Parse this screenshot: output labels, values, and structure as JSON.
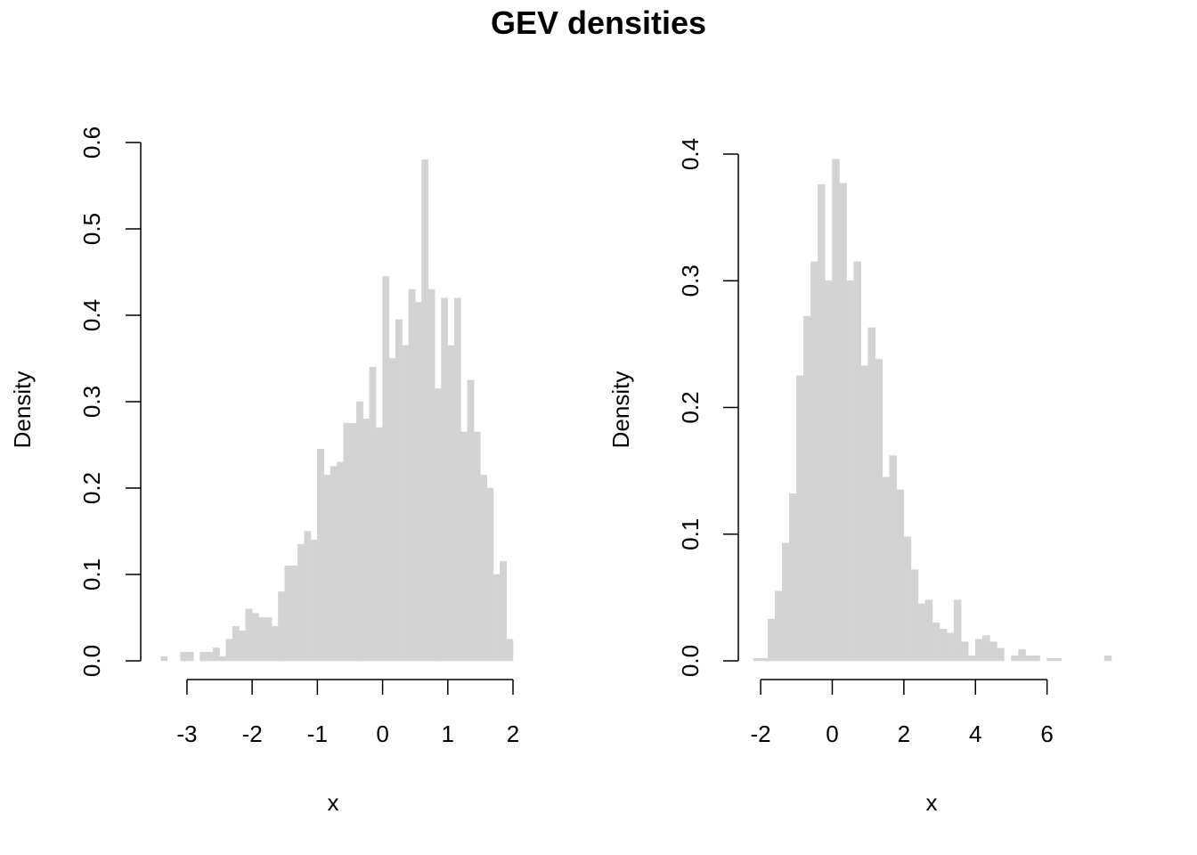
{
  "title": "GEV densities",
  "bar_color": "#d3d3d3",
  "chart_data": [
    {
      "type": "bar",
      "histogram": true,
      "xlabel": "x",
      "ylabel": "Density",
      "xlim": [
        -3.6,
        2.0
      ],
      "ylim": [
        0,
        0.6
      ],
      "xticks": [
        -3,
        -2,
        -1,
        0,
        1,
        2
      ],
      "xtick_labels": [
        "-3",
        "-2",
        "-1",
        "0",
        "1",
        "2"
      ],
      "yticks": [
        0,
        0.1,
        0.2,
        0.3,
        0.4,
        0.5,
        0.6
      ],
      "ytick_labels": [
        "0.0",
        "0.1",
        "0.2",
        "0.3",
        "0.4",
        "0.5",
        "0.6"
      ],
      "bin_start": -3.4,
      "bin_width": 0.1,
      "values": [
        0.005,
        0,
        0,
        0.01,
        0.01,
        0,
        0.01,
        0.01,
        0.015,
        0.005,
        0.025,
        0.04,
        0.035,
        0.06,
        0.055,
        0.05,
        0.05,
        0.04,
        0.08,
        0.11,
        0.11,
        0.135,
        0.15,
        0.14,
        0.245,
        0.215,
        0.225,
        0.23,
        0.275,
        0.275,
        0.3,
        0.28,
        0.34,
        0.27,
        0.445,
        0.35,
        0.395,
        0.365,
        0.43,
        0.415,
        0.58,
        0.43,
        0.315,
        0.42,
        0.365,
        0.42,
        0.265,
        0.325,
        0.265,
        0.215,
        0.2,
        0.1,
        0.115,
        0.025
      ]
    },
    {
      "type": "bar",
      "histogram": true,
      "xlabel": "x",
      "ylabel": "Density",
      "xlim": [
        -2.4,
        7.8
      ],
      "ylim": [
        0,
        0.4
      ],
      "xticks": [
        -2,
        0,
        2,
        4,
        6
      ],
      "xtick_labels": [
        "-2",
        "0",
        "2",
        "4",
        "6"
      ],
      "yticks": [
        0,
        0.1,
        0.2,
        0.3,
        0.4
      ],
      "ytick_labels": [
        "0.0",
        "0.1",
        "0.2",
        "0.3",
        "0.4"
      ],
      "bin_start": -2.2,
      "bin_width": 0.2,
      "values": [
        0.002,
        0.002,
        0.033,
        0.055,
        0.093,
        0.132,
        0.225,
        0.272,
        0.315,
        0.376,
        0.3,
        0.396,
        0.377,
        0.3,
        0.315,
        0.233,
        0.263,
        0.238,
        0.145,
        0.162,
        0.135,
        0.098,
        0.072,
        0.045,
        0.048,
        0.03,
        0.025,
        0.022,
        0.048,
        0.015,
        0.004,
        0.017,
        0.02,
        0.015,
        0.01,
        0,
        0.004,
        0.009,
        0.004,
        0.004,
        0,
        0.002,
        0.002,
        0,
        0,
        0,
        0,
        0,
        0,
        0.004
      ]
    }
  ]
}
